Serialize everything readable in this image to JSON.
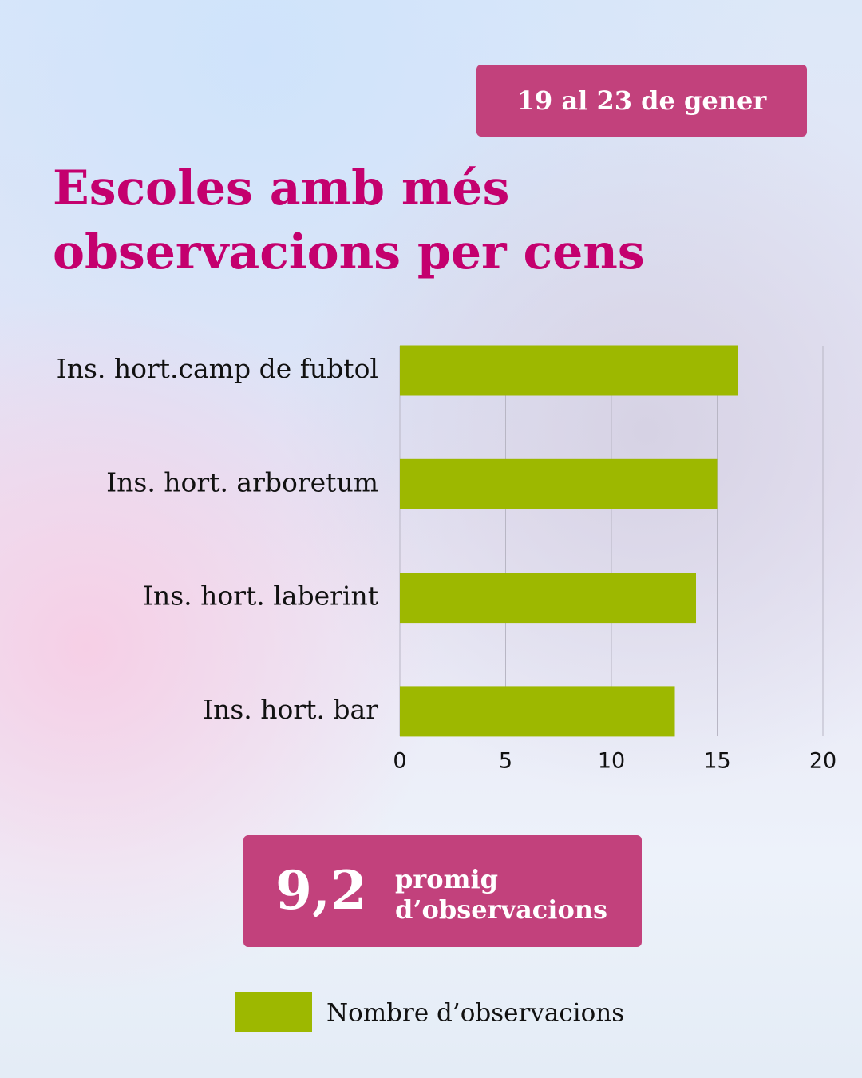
{
  "date_label": "19 al 23 de gener",
  "chart_data": {
    "type": "hbar",
    "title": "Escoles amb més observacions per cens",
    "categories": [
      "Ins. hort.camp de fubtol",
      "Ins. hort. arboretum",
      "Ins. hort. laberint",
      "Ins. hort. bar"
    ],
    "series": [
      {
        "name": "Nombre d’observacions",
        "color": "#9db800",
        "values": [
          16,
          15,
          14,
          13
        ]
      }
    ],
    "xlim": [
      0,
      20
    ],
    "xticks": [
      0,
      5,
      10,
      15,
      20
    ],
    "grid": true,
    "legend": "bottom"
  },
  "callout": {
    "value": "9,2",
    "label": "promig d’observacions"
  }
}
